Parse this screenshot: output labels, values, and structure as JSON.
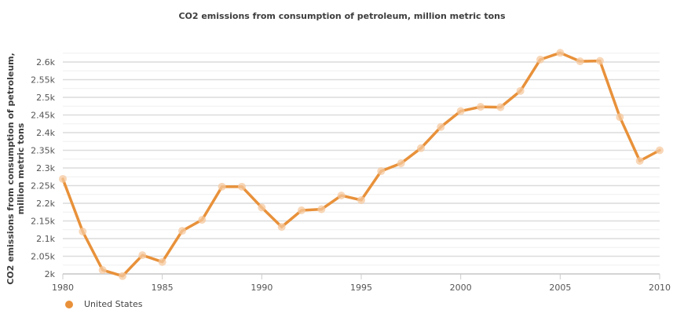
{
  "chart_data": {
    "type": "line",
    "title": "CO2 emissions from consumption of petroleum, million metric tons",
    "xlabel": "",
    "ylabel_lines": [
      "CO2 emissions from consumption of petroleum,",
      "million metric tons"
    ],
    "x": [
      1980,
      1981,
      1982,
      1983,
      1984,
      1985,
      1986,
      1987,
      1988,
      1989,
      1990,
      1991,
      1992,
      1993,
      1994,
      1995,
      1996,
      1997,
      1998,
      1999,
      2000,
      2001,
      2002,
      2003,
      2004,
      2005,
      2006,
      2007,
      2008,
      2009,
      2010
    ],
    "series": [
      {
        "name": "United States",
        "color": "#E8913A",
        "marker_color": "#F5C9A0",
        "values": [
          2269,
          2120,
          2011,
          1994,
          2053,
          2034,
          2122,
          2153,
          2247,
          2247,
          2188,
          2133,
          2180,
          2183,
          2222,
          2209,
          2291,
          2313,
          2356,
          2416,
          2461,
          2473,
          2472,
          2518,
          2607,
          2626,
          2602,
          2603,
          2444,
          2320,
          2350
        ]
      }
    ],
    "ylim": [
      2000,
      2600
    ],
    "xlim": [
      1980,
      2010
    ],
    "yticks": [
      2000,
      2050,
      2100,
      2150,
      2200,
      2250,
      2300,
      2350,
      2400,
      2450,
      2500,
      2550,
      2600
    ],
    "ytick_labels": [
      "2k",
      "2.05k",
      "2.1k",
      "2.15k",
      "2.2k",
      "2.25k",
      "2.3k",
      "2.35k",
      "2.4k",
      "2.45k",
      "2.5k",
      "2.55k",
      "2.6k"
    ],
    "xticks": [
      1980,
      1985,
      1990,
      1995,
      2000,
      2005,
      2010
    ],
    "xtick_labels": [
      "1980",
      "1985",
      "1990",
      "1995",
      "2000",
      "2005",
      "2010"
    ],
    "grid": true,
    "legend_position": "bottom-left"
  }
}
